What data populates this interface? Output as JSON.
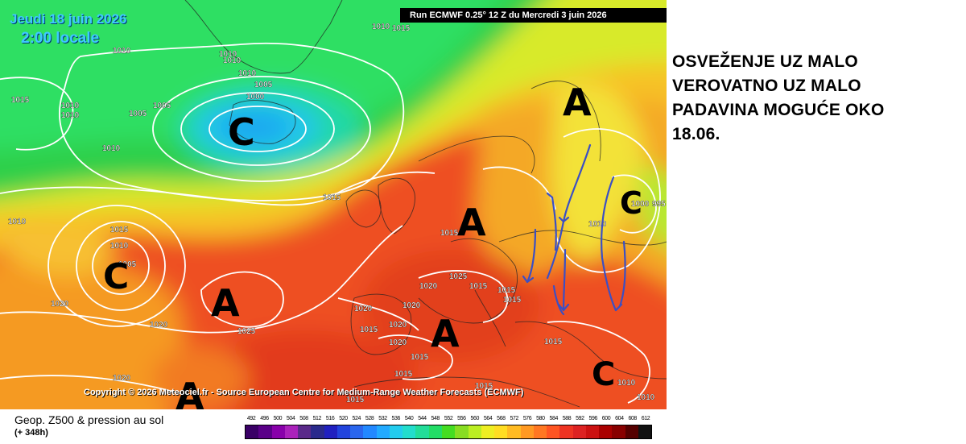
{
  "map": {
    "date_line": "Jeudi 18 juin 2026",
    "time_line": "2:00 locale",
    "run_header": "Run ECMWF 0.25° 12 Z du Mercredi 3 juin 2026",
    "copyright": "Copyright © 2026 Meteociel.fr - Source European Centre for Medium-Range Weather Forecasts (ECMWF)",
    "pressure_centers": [
      {
        "letter": "C",
        "kind": "low"
      },
      {
        "letter": "C",
        "kind": "low"
      },
      {
        "letter": "A",
        "kind": "high"
      },
      {
        "letter": "A",
        "kind": "high"
      },
      {
        "letter": "A",
        "kind": "high"
      },
      {
        "letter": "A",
        "kind": "high"
      },
      {
        "letter": "A",
        "kind": "high"
      },
      {
        "letter": "C",
        "kind": "low"
      },
      {
        "letter": "C",
        "kind": "low"
      }
    ],
    "isobar_labels": [
      "1010",
      "1015",
      "1010",
      "1010",
      "1005",
      "1010",
      "1010",
      "1005",
      "1000",
      "1015",
      "1010",
      "1010",
      "1005",
      "1010",
      "1015",
      "1010",
      "1015",
      "1010",
      "1005",
      "1020",
      "1020",
      "1025",
      "1020",
      "1025",
      "1015",
      "1020",
      "1015",
      "1020",
      "1020",
      "1020",
      "1015",
      "1015",
      "1015",
      "1015",
      "1015",
      "1015",
      "1020",
      "1015",
      "1010",
      "1010",
      "1000",
      "995",
      "1010",
      "1015"
    ],
    "drawing_color": "#3b4fc4"
  },
  "annotation": {
    "lines": [
      "OSVEŽENJE UZ MALO",
      "VEROVATNO UZ MALO",
      "PADAVINA MOGUĆE OKO",
      "18.06."
    ]
  },
  "legend": {
    "title": "Geop. Z500 & pression au sol",
    "subtitle": "(+ 348h)",
    "ticks": [
      "492",
      "496",
      "500",
      "504",
      "508",
      "512",
      "516",
      "520",
      "524",
      "528",
      "532",
      "536",
      "540",
      "544",
      "548",
      "552",
      "556",
      "560",
      "564",
      "568",
      "572",
      "576",
      "580",
      "584",
      "588",
      "592",
      "596",
      "600",
      "604",
      "608",
      "612"
    ],
    "colors": [
      "#3a0066",
      "#5a0088",
      "#8800aa",
      "#aa22bb",
      "#5a2a8a",
      "#2a2a8c",
      "#2020c0",
      "#2244dd",
      "#2a66ee",
      "#2288ff",
      "#22aaff",
      "#22ccee",
      "#22ddcc",
      "#22dd99",
      "#22dd66",
      "#44dd22",
      "#88dd22",
      "#bbee22",
      "#eeee22",
      "#ffdd22",
      "#ffbb22",
      "#ff9922",
      "#ff7722",
      "#ff5522",
      "#ee3322",
      "#dd2222",
      "#cc1111",
      "#aa0000",
      "#880000",
      "#550000",
      "#111111"
    ]
  }
}
